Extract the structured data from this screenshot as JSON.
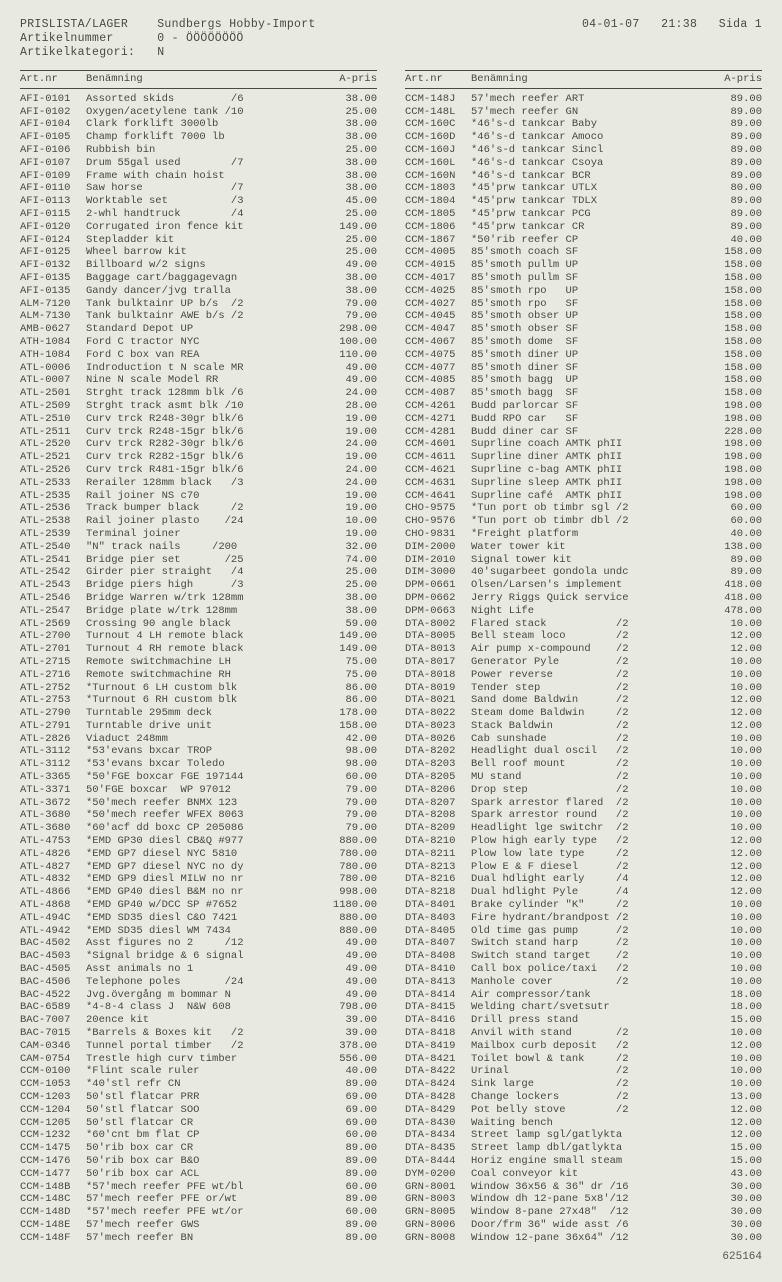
{
  "header": {
    "title_label": "PRISLISTA/LAGER",
    "title_value": "Sundbergs Hobby-Import",
    "artnr_label": "Artikelnummer",
    "artnr_value": "0 - ÖÖÖÖÖÖÖÖ",
    "kat_label": "Artikelkategori:",
    "kat_value": "N",
    "date": "04-01-07",
    "time": "21:38",
    "page": "Sida 1"
  },
  "colhead": {
    "art": "Art.nr",
    "ben": "Benämning",
    "pris": "A-pris"
  },
  "left": [
    {
      "a": "AFI-0101",
      "b": "Assorted skids         /6",
      "p": "38.00"
    },
    {
      "a": "AFI-0102",
      "b": "Oxygen/acetylene tank /10",
      "p": "25.00"
    },
    {
      "a": "AFI-0104",
      "b": "Clark forklift 3000lb",
      "p": "38.00"
    },
    {
      "a": "AFI-0105",
      "b": "Champ forklift 7000 lb",
      "p": "38.00"
    },
    {
      "a": "AFI-0106",
      "b": "Rubbish bin",
      "p": "25.00"
    },
    {
      "a": "AFI-0107",
      "b": "Drum 55gal used        /7",
      "p": "38.00"
    },
    {
      "a": "AFI-0109",
      "b": "Frame with chain hoist",
      "p": "38.00"
    },
    {
      "a": "AFI-0110",
      "b": "Saw horse              /7",
      "p": "38.00"
    },
    {
      "a": "AFI-0113",
      "b": "Worktable set          /3",
      "p": "45.00"
    },
    {
      "a": "AFI-0115",
      "b": "2-whl handtruck        /4",
      "p": "25.00"
    },
    {
      "a": "AFI-0120",
      "b": "Corrugated iron fence kit",
      "p": "149.00"
    },
    {
      "a": "AFI-0124",
      "b": "Stepladder kit",
      "p": "25.00"
    },
    {
      "a": "AFI-0125",
      "b": "Wheel barrow kit",
      "p": "25.00"
    },
    {
      "a": "AFI-0132",
      "b": "Billboard w/2 signs",
      "p": "49.00"
    },
    {
      "a": "AFI-0135",
      "b": "Baggage cart/baggagevagn",
      "p": "38.00"
    },
    {
      "a": "AFI-0135",
      "b": "Gandy dancer/jvg tralla",
      "p": "38.00"
    },
    {
      "a": "ALM-7120",
      "b": "Tank bulktainr UP b/s  /2",
      "p": "79.00"
    },
    {
      "a": "ALM-7130",
      "b": "Tank bulktainr AWE b/s /2",
      "p": "79.00"
    },
    {
      "a": "AMB-0627",
      "b": "Standard Depot UP",
      "p": "298.00"
    },
    {
      "a": "ATH-1084",
      "b": "Ford C tractor NYC",
      "p": "100.00"
    },
    {
      "a": "ATH-1084",
      "b": "Ford C box van REA",
      "p": "110.00"
    },
    {
      "a": "ATL-0006",
      "b": "Indroduction t N scale MR",
      "p": "49.00"
    },
    {
      "a": "ATL-0007",
      "b": "Nine N scale Model RR",
      "p": "49.00"
    },
    {
      "a": "ATL-2501",
      "b": "Strght track 128mm blk /6",
      "p": "24.00"
    },
    {
      "a": "ATL-2509",
      "b": "Strght track asmt blk /10",
      "p": "28.00"
    },
    {
      "a": "ATL-2510",
      "b": "Curv trck R248-30gr blk/6",
      "p": "19.00"
    },
    {
      "a": "ATL-2511",
      "b": "Curv trck R248-15gr blk/6",
      "p": "19.00"
    },
    {
      "a": "ATL-2520",
      "b": "Curv trck R282-30gr blk/6",
      "p": "24.00"
    },
    {
      "a": "ATL-2521",
      "b": "Curv trck R282-15gr blk/6",
      "p": "19.00"
    },
    {
      "a": "ATL-2526",
      "b": "Curv trck R481-15gr blk/6",
      "p": "24.00"
    },
    {
      "a": "ATL-2533",
      "b": "Rerailer 128mm black   /3",
      "p": "24.00"
    },
    {
      "a": "ATL-2535",
      "b": "Rail joiner NS c70",
      "p": "19.00"
    },
    {
      "a": "ATL-2536",
      "b": "Track bumper black     /2",
      "p": "19.00"
    },
    {
      "a": "ATL-2538",
      "b": "Rail joiner plasto    /24",
      "p": "10.00"
    },
    {
      "a": "ATL-2539",
      "b": "Terminal joiner",
      "p": "19.00"
    },
    {
      "a": "ATL-2540",
      "b": "\"N\" track nails     /200",
      "p": "32.00"
    },
    {
      "a": "ATL-2541",
      "b": "Bridge pier set       /25",
      "p": "74.00"
    },
    {
      "a": "ATL-2542",
      "b": "Girder pier straight   /4",
      "p": "25.00"
    },
    {
      "a": "ATL-2543",
      "b": "Bridge piers high      /3",
      "p": "25.00"
    },
    {
      "a": "ATL-2546",
      "b": "Bridge Warren w/trk 128mm",
      "p": "38.00"
    },
    {
      "a": "ATL-2547",
      "b": "Bridge plate w/trk 128mm",
      "p": "38.00"
    },
    {
      "a": "ATL-2569",
      "b": "Crossing 90 angle black",
      "p": "59.00"
    },
    {
      "a": "ATL-2700",
      "b": "Turnout 4 LH remote black",
      "p": "149.00"
    },
    {
      "a": "ATL-2701",
      "b": "Turnout 4 RH remote black",
      "p": "149.00"
    },
    {
      "a": "ATL-2715",
      "b": "Remote switchmachine LH",
      "p": "75.00"
    },
    {
      "a": "ATL-2716",
      "b": "Remote switchmachine RH",
      "p": "75.00"
    },
    {
      "a": "ATL-2752",
      "b": "*Turnout 6 LH custom blk",
      "p": "86.00"
    },
    {
      "a": "ATL-2753",
      "b": "*Turnout 6 RH custom blk",
      "p": "86.00"
    },
    {
      "a": "ATL-2790",
      "b": "Turntable 295mm deck",
      "p": "178.00"
    },
    {
      "a": "ATL-2791",
      "b": "Turntable drive unit",
      "p": "158.00"
    },
    {
      "a": "ATL-2826",
      "b": "Viaduct 248mm",
      "p": "42.00"
    },
    {
      "a": "ATL-3112",
      "b": "*53'evans bxcar TROP",
      "p": "98.00"
    },
    {
      "a": "ATL-3112",
      "b": "*53'evans bxcar Toledo",
      "p": "98.00"
    },
    {
      "a": "ATL-3365",
      "b": "*50'FGE boxcar FGE 197144",
      "p": "60.00"
    },
    {
      "a": "ATL-3371",
      "b": "50'FGE boxcar  WP 97012",
      "p": "79.00"
    },
    {
      "a": "ATL-3672",
      "b": "*50'mech reefer BNMX 123",
      "p": "79.00"
    },
    {
      "a": "ATL-3680",
      "b": "*50'mech reefer WFEX 8063",
      "p": "79.00"
    },
    {
      "a": "ATL-3680",
      "b": "*60'acf dd boxc CP 205086",
      "p": "79.00"
    },
    {
      "a": "ATL-4753",
      "b": "*EMD GP30 diesl CB&Q #977",
      "p": "880.00"
    },
    {
      "a": "ATL-4826",
      "b": "*EMD GP7 diesel NYC 5810",
      "p": "780.00"
    },
    {
      "a": "ATL-4827",
      "b": "*EMD GP7 diesel NYC no dy",
      "p": "780.00"
    },
    {
      "a": "ATL-4832",
      "b": "*EMD GP9 diesl MILW no nr",
      "p": "780.00"
    },
    {
      "a": "ATL-4866",
      "b": "*EMD GP40 diesl B&M no nr",
      "p": "998.00"
    },
    {
      "a": "ATL-4868",
      "b": "*EMD GP40 w/DCC SP #7652",
      "p": "1180.00"
    },
    {
      "a": "ATL-494C",
      "b": "*EMD SD35 diesl C&O 7421",
      "p": "880.00"
    },
    {
      "a": "ATL-4942",
      "b": "*EMD SD35 diesl WM 7434",
      "p": "880.00"
    },
    {
      "a": "BAC-4502",
      "b": "Asst figures no 2     /12",
      "p": "49.00"
    },
    {
      "a": "BAC-4503",
      "b": "*Signal bridge & 6 signal",
      "p": "49.00"
    },
    {
      "a": "BAC-4505",
      "b": "Asst animals no 1",
      "p": "49.00"
    },
    {
      "a": "BAC-4506",
      "b": "Telephone poles       /24",
      "p": "49.00"
    },
    {
      "a": "BAC-4522",
      "b": "Jvg.övergång m bommar N",
      "p": "49.00"
    },
    {
      "a": "BAC-6589",
      "b": "*4-8-4 class J  N&W 608",
      "p": "798.00"
    },
    {
      "a": "BAC-7007",
      "b": "20ence kit",
      "p": "39.00"
    },
    {
      "a": "BAC-7015",
      "b": "*Barrels & Boxes kit   /2",
      "p": "39.00"
    },
    {
      "a": "CAM-0346",
      "b": "Tunnel portal timber   /2",
      "p": "378.00"
    },
    {
      "a": "CAM-0754",
      "b": "Trestle high curv timber",
      "p": "556.00"
    },
    {
      "a": "CCM-0100",
      "b": "*Flint scale ruler",
      "p": "40.00"
    },
    {
      "a": "CCM-1053",
      "b": "*40'stl refr CN",
      "p": "89.00"
    },
    {
      "a": "CCM-1203",
      "b": "50'stl flatcar PRR",
      "p": "69.00"
    },
    {
      "a": "CCM-1204",
      "b": "50'stl flatcar SOO",
      "p": "69.00"
    },
    {
      "a": "CCM-1205",
      "b": "50'stl flatcar CR",
      "p": "69.00"
    },
    {
      "a": "CCM-1232",
      "b": "*60'cnt bm flat CP",
      "p": "60.00"
    },
    {
      "a": "CCM-1475",
      "b": "50'rib box car CR",
      "p": "89.00"
    },
    {
      "a": "CCM-1476",
      "b": "50'rib box car B&O",
      "p": "89.00"
    },
    {
      "a": "CCM-1477",
      "b": "50'rib box car ACL",
      "p": "89.00"
    },
    {
      "a": "CCM-148B",
      "b": "*57'mech reefer PFE wt/bl",
      "p": "60.00"
    },
    {
      "a": "CCM-148C",
      "b": "57'mech reefer PFE or/wt",
      "p": "89.00"
    },
    {
      "a": "CCM-148D",
      "b": "*57'mech reefer PFE wt/or",
      "p": "60.00"
    },
    {
      "a": "CCM-148E",
      "b": "57'mech reefer GWS",
      "p": "89.00"
    },
    {
      "a": "CCM-148F",
      "b": "57'mech reefer BN",
      "p": "89.00"
    }
  ],
  "right": [
    {
      "a": "CCM-148J",
      "b": "57'mech reefer ART",
      "p": "89.00"
    },
    {
      "a": "CCM-148L",
      "b": "57'mech reefer GN",
      "p": "89.00"
    },
    {
      "a": "CCM-160C",
      "b": "*46's-d tankcar Baby",
      "p": "89.00"
    },
    {
      "a": "CCM-160D",
      "b": "*46's-d tankcar Amoco",
      "p": "89.00"
    },
    {
      "a": "CCM-160J",
      "b": "*46's-d tankcar Sincl",
      "p": "89.00"
    },
    {
      "a": "CCM-160L",
      "b": "*46's-d tankcar Csoya",
      "p": "89.00"
    },
    {
      "a": "CCM-160N",
      "b": "*46's-d tankcar BCR",
      "p": "89.00"
    },
    {
      "a": "CCM-1803",
      "b": "*45'prw tankcar UTLX",
      "p": "80.00"
    },
    {
      "a": "CCM-1804",
      "b": "*45'prw tankcar TDLX",
      "p": "89.00"
    },
    {
      "a": "CCM-1805",
      "b": "*45'prw tankcar PCG",
      "p": "89.00"
    },
    {
      "a": "CCM-1806",
      "b": "*45'prw tankcar CR",
      "p": "89.00"
    },
    {
      "a": "CCM-1867",
      "b": "*50'rib reefer CP",
      "p": "40.00"
    },
    {
      "a": "CCM-4005",
      "b": "85'smoth coach SF",
      "p": "158.00"
    },
    {
      "a": "CCM-4015",
      "b": "85'smoth pullm UP",
      "p": "158.00"
    },
    {
      "a": "CCM-4017",
      "b": "85'smoth pullm SF",
      "p": "158.00"
    },
    {
      "a": "CCM-4025",
      "b": "85'smoth rpo   UP",
      "p": "158.00"
    },
    {
      "a": "CCM-4027",
      "b": "85'smoth rpo   SF",
      "p": "158.00"
    },
    {
      "a": "CCM-4045",
      "b": "85'smoth obser UP",
      "p": "158.00"
    },
    {
      "a": "CCM-4047",
      "b": "85'smoth obser SF",
      "p": "158.00"
    },
    {
      "a": "CCM-4067",
      "b": "85'smoth dome  SF",
      "p": "158.00"
    },
    {
      "a": "CCM-4075",
      "b": "85'smoth diner UP",
      "p": "158.00"
    },
    {
      "a": "CCM-4077",
      "b": "85'smoth diner SF",
      "p": "158.00"
    },
    {
      "a": "CCM-4085",
      "b": "85'smoth bagg  UP",
      "p": "158.00"
    },
    {
      "a": "CCM-4087",
      "b": "85'smoth bagg  SF",
      "p": "158.00"
    },
    {
      "a": "CCM-4261",
      "b": "Budd parlorcar SF",
      "p": "198.00"
    },
    {
      "a": "CCM-4271",
      "b": "Budd RPO car   SF",
      "p": "198.00"
    },
    {
      "a": "CCM-4281",
      "b": "Budd diner car SF",
      "p": "228.00"
    },
    {
      "a": "CCM-4601",
      "b": "Suprline coach AMTK phII",
      "p": "198.00"
    },
    {
      "a": "CCM-4611",
      "b": "Suprline diner AMTK phII",
      "p": "198.00"
    },
    {
      "a": "CCM-4621",
      "b": "Suprline c-bag AMTK phII",
      "p": "198.00"
    },
    {
      "a": "CCM-4631",
      "b": "Suprline sleep AMTK phII",
      "p": "198.00"
    },
    {
      "a": "CCM-4641",
      "b": "Suprline café  AMTK phII",
      "p": "198.00"
    },
    {
      "a": "CHO-9575",
      "b": "*Tun port ob timbr sgl /2",
      "p": "60.00"
    },
    {
      "a": "CHO-9576",
      "b": "*Tun port ob timbr dbl /2",
      "p": "60.00"
    },
    {
      "a": "CHO-9831",
      "b": "*Freight platform",
      "p": "40.00"
    },
    {
      "a": "DIM-2000",
      "b": "Water tower kit",
      "p": "138.00"
    },
    {
      "a": "DIM-2010",
      "b": "Signal tower kit",
      "p": "89.00"
    },
    {
      "a": "DIM-3000",
      "b": "40'sugarbeet gondola undc",
      "p": "89.00"
    },
    {
      "a": "DPM-0661",
      "b": "Olsen/Larsen's implement",
      "p": "418.00"
    },
    {
      "a": "DPM-0662",
      "b": "Jerry Riggs Quick service",
      "p": "418.00"
    },
    {
      "a": "DPM-0663",
      "b": "Night Life",
      "p": "478.00"
    },
    {
      "a": "DTA-8002",
      "b": "Flared stack           /2",
      "p": "10.00"
    },
    {
      "a": "DTA-8005",
      "b": "Bell steam loco        /2",
      "p": "12.00"
    },
    {
      "a": "DTA-8013",
      "b": "Air pump x-compound    /2",
      "p": "12.00"
    },
    {
      "a": "DTA-8017",
      "b": "Generator Pyle         /2",
      "p": "10.00"
    },
    {
      "a": "DTA-8018",
      "b": "Power reverse          /2",
      "p": "10.00"
    },
    {
      "a": "DTA-8019",
      "b": "Tender step            /2",
      "p": "10.00"
    },
    {
      "a": "DTA-8021",
      "b": "Sand dome Baldwin      /2",
      "p": "12.00"
    },
    {
      "a": "DTA-8022",
      "b": "Steam dome Baldwin     /2",
      "p": "12.00"
    },
    {
      "a": "DTA-8023",
      "b": "Stack Baldwin          /2",
      "p": "12.00"
    },
    {
      "a": "DTA-8026",
      "b": "Cab sunshade           /2",
      "p": "10.00"
    },
    {
      "a": "DTA-8202",
      "b": "Headlight dual oscil   /2",
      "p": "10.00"
    },
    {
      "a": "DTA-8203",
      "b": "Bell roof mount        /2",
      "p": "10.00"
    },
    {
      "a": "DTA-8205",
      "b": "MU stand               /2",
      "p": "10.00"
    },
    {
      "a": "DTA-8206",
      "b": "Drop step              /2",
      "p": "10.00"
    },
    {
      "a": "DTA-8207",
      "b": "Spark arrestor flared  /2",
      "p": "10.00"
    },
    {
      "a": "DTA-8208",
      "b": "Spark arrestor round   /2",
      "p": "10.00"
    },
    {
      "a": "DTA-8209",
      "b": "Headlight lge switchr  /2",
      "p": "10.00"
    },
    {
      "a": "DTA-8210",
      "b": "Plow high early type   /2",
      "p": "12.00"
    },
    {
      "a": "DTA-8211",
      "b": "Plow low late type     /2",
      "p": "12.00"
    },
    {
      "a": "DTA-8213",
      "b": "Plow E & F diesel      /2",
      "p": "12.00"
    },
    {
      "a": "DTA-8216",
      "b": "Dual hdlight early     /4",
      "p": "12.00"
    },
    {
      "a": "DTA-8218",
      "b": "Dual hdlight Pyle      /4",
      "p": "12.00"
    },
    {
      "a": "DTA-8401",
      "b": "Brake cylinder \"K\"     /2",
      "p": "10.00"
    },
    {
      "a": "DTA-8403",
      "b": "Fire hydrant/brandpost /2",
      "p": "10.00"
    },
    {
      "a": "DTA-8405",
      "b": "Old time gas pump      /2",
      "p": "10.00"
    },
    {
      "a": "DTA-8407",
      "b": "Switch stand harp      /2",
      "p": "10.00"
    },
    {
      "a": "DTA-8408",
      "b": "Switch stand target    /2",
      "p": "10.00"
    },
    {
      "a": "DTA-8410",
      "b": "Call box police/taxi   /2",
      "p": "10.00"
    },
    {
      "a": "DTA-8413",
      "b": "Manhole cover          /2",
      "p": "10.00"
    },
    {
      "a": "DTA-8414",
      "b": "Air compressor/tank",
      "p": "18.00"
    },
    {
      "a": "DTA-8415",
      "b": "Welding chart/svetsutr",
      "p": "18.00"
    },
    {
      "a": "DTA-8416",
      "b": "Drill press stand",
      "p": "15.00"
    },
    {
      "a": "DTA-8418",
      "b": "Anvil with stand       /2",
      "p": "10.00"
    },
    {
      "a": "DTA-8419",
      "b": "Mailbox curb deposit   /2",
      "p": "12.00"
    },
    {
      "a": "DTA-8421",
      "b": "Toilet bowl & tank     /2",
      "p": "10.00"
    },
    {
      "a": "DTA-8422",
      "b": "Urinal                 /2",
      "p": "10.00"
    },
    {
      "a": "DTA-8424",
      "b": "Sink large             /2",
      "p": "10.00"
    },
    {
      "a": "DTA-8428",
      "b": "Change lockers         /2",
      "p": "13.00"
    },
    {
      "a": "DTA-8429",
      "b": "Pot belly stove        /2",
      "p": "12.00"
    },
    {
      "a": "DTA-8430",
      "b": "Waiting bench",
      "p": "12.00"
    },
    {
      "a": "DTA-8434",
      "b": "Street lamp sgl/gatlykta",
      "p": "12.00"
    },
    {
      "a": "DTA-8435",
      "b": "Street lamp dbl/gatlykta",
      "p": "15.00"
    },
    {
      "a": "DTA-8444",
      "b": "Horiz engine small steam",
      "p": "15.00"
    },
    {
      "a": "DYM-0200",
      "b": "Coal conveyor kit",
      "p": "43.00"
    },
    {
      "a": "GRN-8001",
      "b": "Window 36x56 & 36\" dr /16",
      "p": "30.00"
    },
    {
      "a": "GRN-8003",
      "b": "Window dh 12-pane 5x8'/12",
      "p": "30.00"
    },
    {
      "a": "GRN-8005",
      "b": "Window 8-pane 27x48\"  /12",
      "p": "30.00"
    },
    {
      "a": "GRN-8006",
      "b": "Door/frm 36\" wide asst /6",
      "p": "30.00"
    },
    {
      "a": "GRN-8008",
      "b": "Window 12-pane 36x64\" /12",
      "p": "30.00"
    }
  ],
  "footer_id": "625164"
}
